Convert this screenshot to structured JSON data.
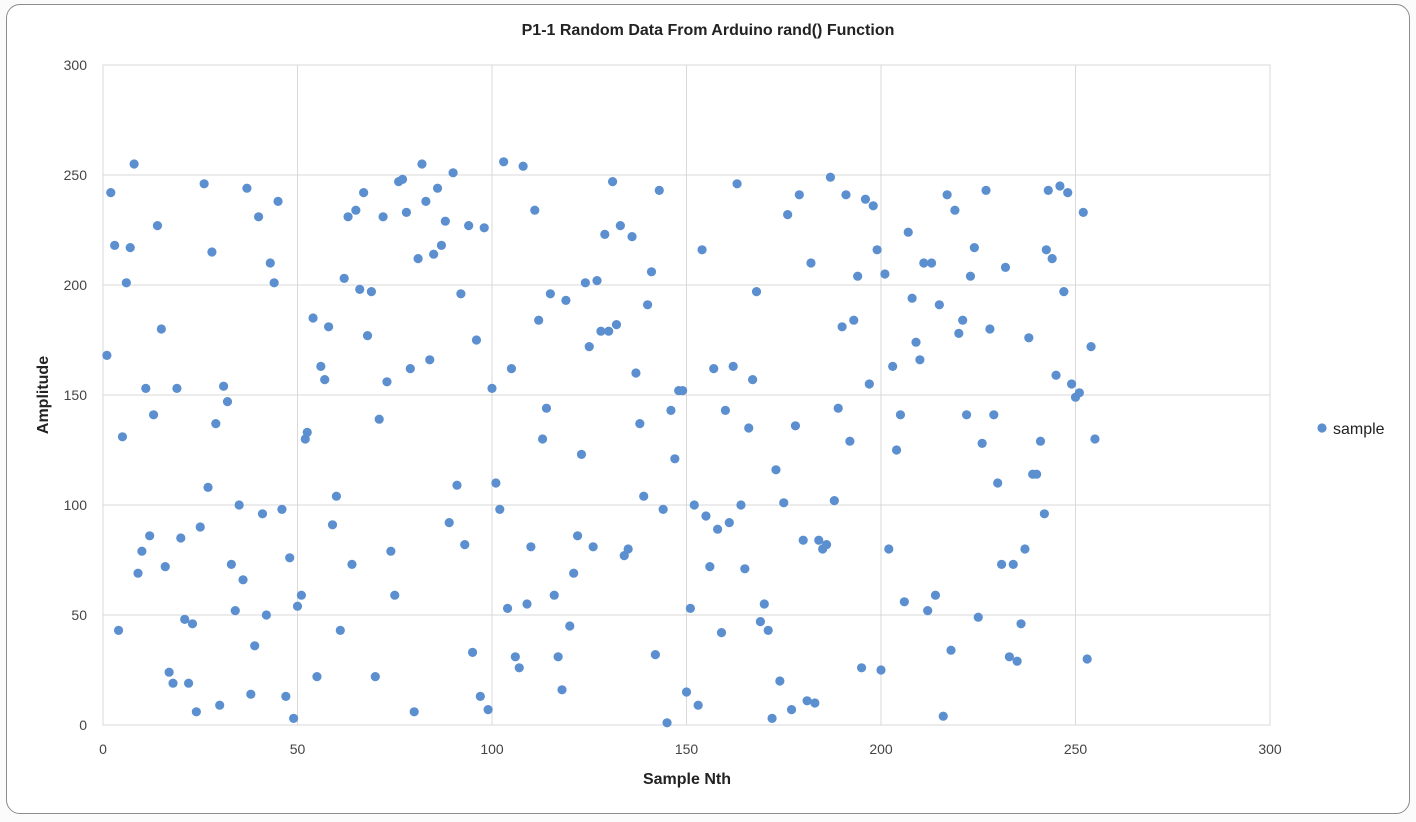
{
  "chart_data": {
    "type": "scatter",
    "title": "P1-1 Random Data From Arduino rand() Function",
    "xlabel": "Sample Nth",
    "ylabel": "Amplitude",
    "xlim": [
      0,
      300
    ],
    "ylim": [
      0,
      300
    ],
    "x_ticks": [
      0,
      50,
      100,
      150,
      200,
      250,
      300
    ],
    "y_ticks": [
      0,
      50,
      100,
      150,
      200,
      250,
      300
    ],
    "grid": true,
    "legend_position": "right",
    "series": [
      {
        "name": "sample",
        "color": "#5b8fcf",
        "points": [
          [
            1,
            168
          ],
          [
            2,
            242
          ],
          [
            3,
            218
          ],
          [
            4,
            43
          ],
          [
            5,
            131
          ],
          [
            6,
            201
          ],
          [
            7,
            217
          ],
          [
            8,
            255
          ],
          [
            9,
            69
          ],
          [
            10,
            79
          ],
          [
            11,
            153
          ],
          [
            12,
            86
          ],
          [
            13,
            141
          ],
          [
            14,
            227
          ],
          [
            15,
            180
          ],
          [
            16,
            72
          ],
          [
            17,
            24
          ],
          [
            18,
            19
          ],
          [
            19,
            153
          ],
          [
            20,
            85
          ],
          [
            21,
            48
          ],
          [
            22,
            19
          ],
          [
            23,
            46
          ],
          [
            24,
            6
          ],
          [
            25,
            90
          ],
          [
            26,
            246
          ],
          [
            27,
            108
          ],
          [
            28,
            215
          ],
          [
            29,
            137
          ],
          [
            30,
            9
          ],
          [
            31,
            154
          ],
          [
            32,
            147
          ],
          [
            33,
            73
          ],
          [
            34,
            52
          ],
          [
            35,
            100
          ],
          [
            36,
            66
          ],
          [
            37,
            244
          ],
          [
            38,
            14
          ],
          [
            39,
            36
          ],
          [
            40,
            231
          ],
          [
            41,
            96
          ],
          [
            42,
            50
          ],
          [
            43,
            210
          ],
          [
            44,
            201
          ],
          [
            45,
            238
          ],
          [
            46,
            98
          ],
          [
            47,
            13
          ],
          [
            48,
            76
          ],
          [
            49,
            3
          ],
          [
            50,
            54
          ],
          [
            51,
            59
          ],
          [
            52,
            130
          ],
          [
            52.5,
            133
          ],
          [
            54,
            185
          ],
          [
            55,
            22
          ],
          [
            56,
            163
          ],
          [
            57,
            157
          ],
          [
            58,
            181
          ],
          [
            59,
            91
          ],
          [
            60,
            104
          ],
          [
            61,
            43
          ],
          [
            62,
            203
          ],
          [
            63,
            231
          ],
          [
            64,
            73
          ],
          [
            65,
            234
          ],
          [
            66,
            198
          ],
          [
            67,
            242
          ],
          [
            68,
            177
          ],
          [
            69,
            197
          ],
          [
            70,
            22
          ],
          [
            71,
            139
          ],
          [
            72,
            231
          ],
          [
            73,
            156
          ],
          [
            74,
            79
          ],
          [
            75,
            59
          ],
          [
            76,
            247
          ],
          [
            77,
            248
          ],
          [
            78,
            233
          ],
          [
            79,
            162
          ],
          [
            80,
            6
          ],
          [
            81,
            212
          ],
          [
            82,
            255
          ],
          [
            83,
            238
          ],
          [
            84,
            166
          ],
          [
            85,
            214
          ],
          [
            86,
            244
          ],
          [
            87,
            218
          ],
          [
            88,
            229
          ],
          [
            89,
            92
          ],
          [
            90,
            251
          ],
          [
            91,
            109
          ],
          [
            92,
            196
          ],
          [
            93,
            82
          ],
          [
            94,
            227
          ],
          [
            95,
            33
          ],
          [
            96,
            175
          ],
          [
            97,
            13
          ],
          [
            98,
            226
          ],
          [
            99,
            7
          ],
          [
            100,
            153
          ],
          [
            101,
            110
          ],
          [
            102,
            98
          ],
          [
            103,
            256
          ],
          [
            104,
            53
          ],
          [
            105,
            162
          ],
          [
            106,
            31
          ],
          [
            107,
            26
          ],
          [
            108,
            254
          ],
          [
            109,
            55
          ],
          [
            110,
            81
          ],
          [
            111,
            234
          ],
          [
            112,
            184
          ],
          [
            113,
            130
          ],
          [
            114,
            144
          ],
          [
            115,
            196
          ],
          [
            116,
            59
          ],
          [
            117,
            31
          ],
          [
            118,
            16
          ],
          [
            119,
            193
          ],
          [
            120,
            45
          ],
          [
            121,
            69
          ],
          [
            122,
            86
          ],
          [
            123,
            123
          ],
          [
            124,
            201
          ],
          [
            125,
            172
          ],
          [
            126,
            81
          ],
          [
            127,
            202
          ],
          [
            128,
            179
          ],
          [
            129,
            223
          ],
          [
            130,
            179
          ],
          [
            131,
            247
          ],
          [
            132,
            182
          ],
          [
            133,
            227
          ],
          [
            134,
            77
          ],
          [
            135,
            80
          ],
          [
            136,
            222
          ],
          [
            137,
            160
          ],
          [
            138,
            137
          ],
          [
            139,
            104
          ],
          [
            140,
            191
          ],
          [
            141,
            206
          ],
          [
            142,
            32
          ],
          [
            143,
            243
          ],
          [
            144,
            98
          ],
          [
            145,
            1
          ],
          [
            146,
            143
          ],
          [
            147,
            121
          ],
          [
            148,
            152
          ],
          [
            149,
            152
          ],
          [
            150,
            15
          ],
          [
            151,
            53
          ],
          [
            152,
            100
          ],
          [
            153,
            9
          ],
          [
            154,
            216
          ],
          [
            155,
            95
          ],
          [
            156,
            72
          ],
          [
            157,
            162
          ],
          [
            158,
            89
          ],
          [
            159,
            42
          ],
          [
            160,
            143
          ],
          [
            161,
            92
          ],
          [
            162,
            163
          ],
          [
            163,
            246
          ],
          [
            164,
            100
          ],
          [
            165,
            71
          ],
          [
            166,
            135
          ],
          [
            167,
            157
          ],
          [
            168,
            197
          ],
          [
            169,
            47
          ],
          [
            170,
            55
          ],
          [
            171,
            43
          ],
          [
            172,
            3
          ],
          [
            173,
            116
          ],
          [
            174,
            20
          ],
          [
            175,
            101
          ],
          [
            176,
            232
          ],
          [
            177,
            7
          ],
          [
            178,
            136
          ],
          [
            179,
            241
          ],
          [
            180,
            84
          ],
          [
            181,
            11
          ],
          [
            182,
            210
          ],
          [
            183,
            10
          ],
          [
            184,
            84
          ],
          [
            185,
            80
          ],
          [
            186,
            82
          ],
          [
            187,
            249
          ],
          [
            188,
            102
          ],
          [
            189,
            144
          ],
          [
            190,
            181
          ],
          [
            191,
            241
          ],
          [
            192,
            129
          ],
          [
            193,
            184
          ],
          [
            194,
            204
          ],
          [
            195,
            26
          ],
          [
            196,
            239
          ],
          [
            197,
            155
          ],
          [
            198,
            236
          ],
          [
            199,
            216
          ],
          [
            200,
            25
          ],
          [
            201,
            205
          ],
          [
            202,
            80
          ],
          [
            203,
            163
          ],
          [
            204,
            125
          ],
          [
            205,
            141
          ],
          [
            206,
            56
          ],
          [
            207,
            224
          ],
          [
            208,
            194
          ],
          [
            209,
            174
          ],
          [
            210,
            166
          ],
          [
            211,
            210
          ],
          [
            212,
            52
          ],
          [
            213,
            210
          ],
          [
            214,
            59
          ],
          [
            215,
            191
          ],
          [
            216,
            4
          ],
          [
            217,
            241
          ],
          [
            218,
            34
          ],
          [
            219,
            234
          ],
          [
            220,
            178
          ],
          [
            221,
            184
          ],
          [
            222,
            141
          ],
          [
            223,
            204
          ],
          [
            224,
            217
          ],
          [
            225,
            49
          ],
          [
            226,
            128
          ],
          [
            227,
            243
          ],
          [
            228,
            180
          ],
          [
            229,
            141
          ],
          [
            230,
            110
          ],
          [
            231,
            73
          ],
          [
            232,
            208
          ],
          [
            233,
            31
          ],
          [
            234,
            73
          ],
          [
            235,
            29
          ],
          [
            236,
            46
          ],
          [
            237,
            80
          ],
          [
            238,
            176
          ],
          [
            239,
            114
          ],
          [
            240,
            114
          ],
          [
            241,
            129
          ],
          [
            242,
            96
          ],
          [
            242.5,
            216
          ],
          [
            243,
            243
          ],
          [
            244,
            212
          ],
          [
            245,
            159
          ],
          [
            246,
            245
          ],
          [
            247,
            197
          ],
          [
            248,
            242
          ],
          [
            249,
            155
          ],
          [
            250,
            149
          ],
          [
            251,
            151
          ],
          [
            252,
            233
          ],
          [
            253,
            30
          ],
          [
            254,
            172
          ],
          [
            255,
            130
          ]
        ]
      }
    ]
  }
}
